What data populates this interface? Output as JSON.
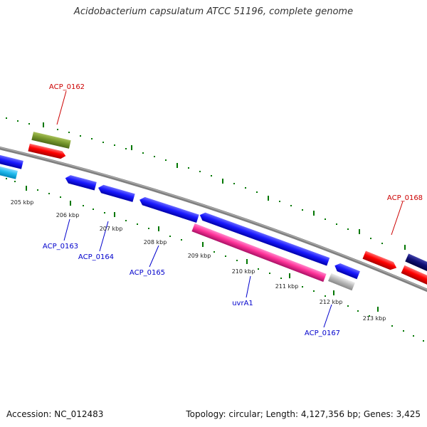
{
  "title": "Acidobacterium capsulatum ATCC 51196, complete genome",
  "footer": {
    "accession": "Accession: NC_012483",
    "stats": "Topology: circular; Length: 4,127,356 bp; Genes: 3,425"
  },
  "tick_labels": [
    "205 kbp",
    "206 kbp",
    "207 kbp",
    "208 kbp",
    "209 kbp",
    "210 kbp",
    "211 kbp",
    "212 kbp",
    "213 kbp"
  ],
  "gene_labels": [
    {
      "id": "acp0162",
      "text": "ACP_0162",
      "color": "#cc0000"
    },
    {
      "id": "acp0163",
      "text": "ACP_0163",
      "color": "#0000cc"
    },
    {
      "id": "acp0164",
      "text": "ACP_0164",
      "color": "#0000cc"
    },
    {
      "id": "acp0165",
      "text": "ACP_0165",
      "color": "#0000cc"
    },
    {
      "id": "uvra1",
      "text": "uvrA1",
      "color": "#0000cc"
    },
    {
      "id": "acp0167",
      "text": "ACP_0167",
      "color": "#0000cc"
    },
    {
      "id": "acp0168",
      "text": "ACP_0168",
      "color": "#cc0000"
    }
  ],
  "colors": {
    "forward_strand": "#ff0000",
    "reverse_strand": "#1a1aff",
    "rrna": "#ff3399",
    "olive": "#7a9a2e",
    "cyan": "#22bbee",
    "navy": "#111177",
    "gray": "#bbbbbb",
    "backbone": "#808080",
    "dots": "#007700"
  }
}
